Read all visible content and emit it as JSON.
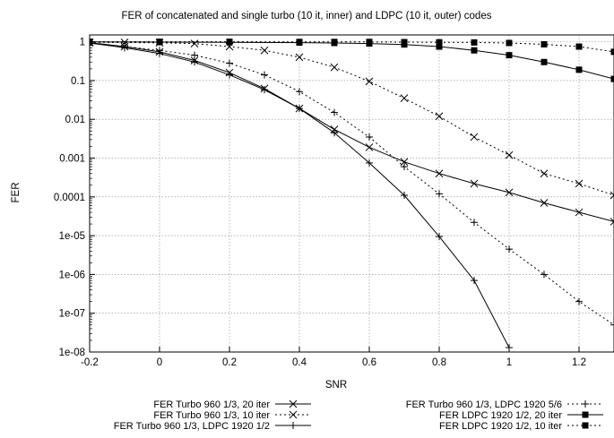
{
  "chart_data": {
    "type": "line",
    "title": "FER of concatenated and single turbo (10 it, inner) and LDPC (10 it, outer) codes",
    "xlabel": "SNR",
    "ylabel": "FER",
    "xlim": [
      -0.2,
      1.3
    ],
    "ylim": [
      1e-08,
      1.5
    ],
    "yscale": "log",
    "grid": true,
    "legend_position": "bottom",
    "x_ticks": [
      -0.2,
      0,
      0.2,
      0.4,
      0.6,
      0.8,
      1,
      1.2
    ],
    "x_tick_labels": [
      "-0.2",
      "0",
      "0.2",
      "0.4",
      "0.6",
      "0.8",
      "1",
      "1.2"
    ],
    "y_ticks": [
      1,
      0.1,
      0.01,
      0.001,
      0.0001,
      1e-05,
      1e-06,
      1e-07,
      1e-08
    ],
    "y_tick_labels": [
      "1",
      "0.1",
      "0.01",
      "0.001",
      "0.0001",
      "1e-05",
      "1e-06",
      "1e-07",
      "1e-08"
    ],
    "series": [
      {
        "name": "FER Turbo 960 1/3, 20 iter",
        "line_style": "solid",
        "marker": "x",
        "x": [
          -0.2,
          -0.1,
          0,
          0.1,
          0.2,
          0.3,
          0.4,
          0.5,
          0.6,
          0.7,
          0.8,
          0.9,
          1.0,
          1.1,
          1.2,
          1.3
        ],
        "y": [
          0.95,
          0.75,
          0.55,
          0.33,
          0.16,
          0.062,
          0.019,
          0.0055,
          0.0019,
          0.0008,
          0.0004,
          0.00022,
          0.00013,
          7e-05,
          4e-05,
          2.3e-05
        ]
      },
      {
        "name": "FER Turbo 960 1/3, 10 iter",
        "line_style": "dotted",
        "marker": "x",
        "x": [
          -0.2,
          -0.1,
          0,
          0.1,
          0.2,
          0.3,
          0.4,
          0.5,
          0.6,
          0.7,
          0.8,
          0.9,
          1.0,
          1.1,
          1.2,
          1.3
        ],
        "y": [
          0.97,
          0.96,
          0.94,
          0.9,
          0.75,
          0.6,
          0.4,
          0.22,
          0.095,
          0.035,
          0.012,
          0.0035,
          0.0012,
          0.0004,
          0.00022,
          0.00011
        ]
      },
      {
        "name": "FER Turbo 960 1/3, LDPC 1920 1/2",
        "line_style": "solid",
        "marker": "+",
        "x": [
          -0.2,
          -0.1,
          0,
          0.1,
          0.2,
          0.3,
          0.4,
          0.5,
          0.6,
          0.7,
          0.8,
          0.9,
          1.0
        ],
        "y": [
          0.93,
          0.7,
          0.5,
          0.3,
          0.14,
          0.058,
          0.019,
          0.0045,
          0.00075,
          0.00011,
          9.5e-06,
          7e-07,
          1.3e-08
        ]
      },
      {
        "name": "FER Turbo 960 1/3, LDPC 1920 5/6",
        "line_style": "dotted",
        "marker": "+",
        "x": [
          -0.2,
          -0.1,
          0,
          0.1,
          0.2,
          0.3,
          0.4,
          0.5,
          0.6,
          0.7,
          0.8,
          0.9,
          1.0,
          1.1,
          1.2,
          1.3
        ],
        "y": [
          0.92,
          0.75,
          0.6,
          0.45,
          0.28,
          0.14,
          0.052,
          0.015,
          0.0035,
          0.0006,
          0.00012,
          2.2e-05,
          4.5e-06,
          1e-06,
          2e-07,
          5e-08
        ]
      },
      {
        "name": "FER LDPC 1920 1/2, 20 iter",
        "line_style": "solid",
        "marker": "square",
        "x": [
          -0.2,
          0,
          0.2,
          0.4,
          0.5,
          0.6,
          0.7,
          0.8,
          0.9,
          1.0,
          1.1,
          1.2,
          1.3
        ],
        "y": [
          0.99,
          0.98,
          0.97,
          0.95,
          0.93,
          0.9,
          0.85,
          0.75,
          0.6,
          0.45,
          0.3,
          0.19,
          0.11
        ]
      },
      {
        "name": "FER LDPC 1920 1/2, 10 iter",
        "line_style": "dotted",
        "marker": "square",
        "x": [
          -0.2,
          0,
          0.2,
          0.4,
          0.5,
          0.6,
          0.7,
          0.8,
          0.9,
          1.0,
          1.1,
          1.2,
          1.3
        ],
        "y": [
          1.0,
          1.0,
          1.0,
          0.99,
          0.99,
          0.99,
          0.98,
          0.97,
          0.96,
          0.93,
          0.86,
          0.75,
          0.55
        ]
      }
    ]
  }
}
